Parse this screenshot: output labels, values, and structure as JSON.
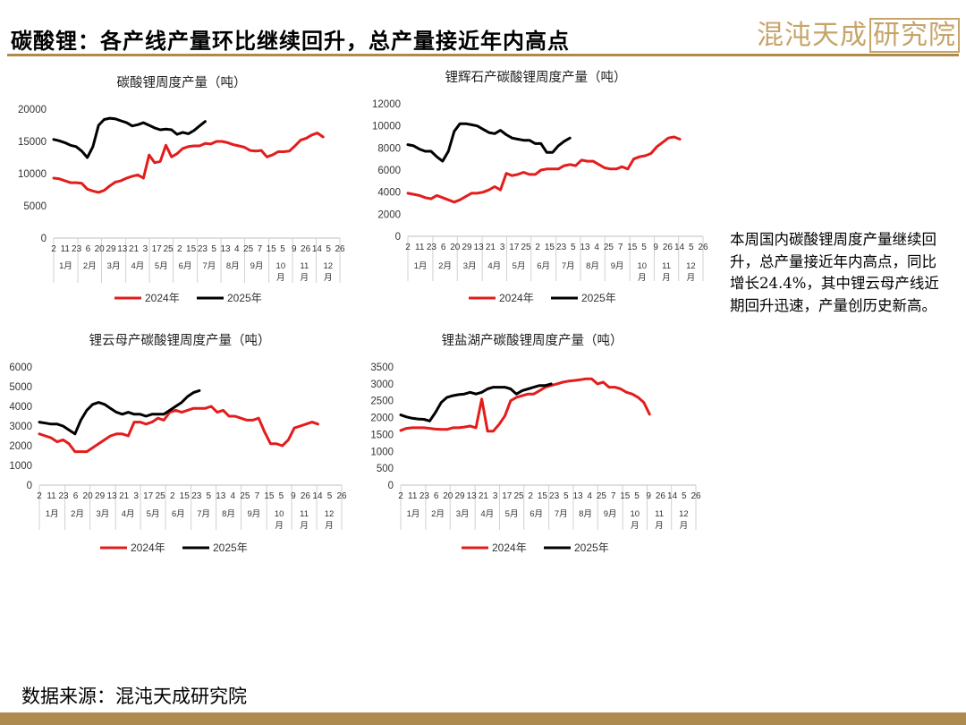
{
  "page": {
    "title": "碳酸锂：各产线产量环比继续回升，总产量接近年内高点",
    "logo": {
      "text": "混沌天成",
      "boxed_text": "研究院"
    },
    "note": "本周国内碳酸锂周度产量继续回升，总产量接近年内高点，同比增长24.4%，其中锂云母产线近期回升迅速，产量创历史新高。",
    "source": "数据来源：混沌天成研究院"
  },
  "colors": {
    "series_2024": "#e31c1c",
    "series_2025": "#000000",
    "rule": "#b08a4a",
    "logo": "#c6a46a"
  },
  "chart_data": [
    {
      "type": "line",
      "title": "碳酸锂周度产量（吨）",
      "ylim": [
        0,
        20000
      ],
      "yticks": [
        0,
        5000,
        10000,
        15000,
        20000
      ],
      "xtick_labels": [
        "2",
        "11",
        "23",
        "6",
        "20",
        "29",
        "13",
        "21",
        "3",
        "17",
        "25",
        "2",
        "15",
        "23",
        "5",
        "13",
        "4",
        "25",
        "7",
        "15",
        "5",
        "9",
        "26",
        "14",
        "5",
        "26"
      ],
      "month_labels": [
        "1月",
        "2月",
        "3月",
        "4月",
        "5月",
        "6月",
        "7月",
        "8月",
        "9月",
        "10月",
        "11月",
        "12月"
      ],
      "x_weeks": 52,
      "series": [
        {
          "name": "2024年",
          "color": "#e31c1c",
          "values": [
            9300,
            9200,
            8900,
            8600,
            8600,
            8500,
            7600,
            7300,
            7100,
            7400,
            8100,
            8700,
            8900,
            9300,
            9600,
            9800,
            9300,
            12900,
            11700,
            11900,
            14400,
            12600,
            13100,
            13900,
            14200,
            14300,
            14300,
            14700,
            14600,
            15000,
            15000,
            14800,
            14500,
            14300,
            14100,
            13600,
            13500,
            13600,
            12600,
            12900,
            13400,
            13400,
            13500,
            14300,
            15200,
            15500,
            16000,
            16300,
            15700
          ]
        },
        {
          "name": "2025年",
          "color": "#000000",
          "values": [
            15300,
            15100,
            14800,
            14400,
            14200,
            13500,
            12500,
            14200,
            17500,
            18400,
            18600,
            18500,
            18200,
            17900,
            17400,
            17600,
            17900,
            17500,
            17100,
            16800,
            16900,
            16800,
            16100,
            16400,
            16200,
            16700,
            17400,
            18100
          ]
        }
      ]
    },
    {
      "type": "line",
      "title": "锂辉石产碳酸锂周度产量（吨）",
      "ylim": [
        0,
        12000
      ],
      "yticks": [
        0,
        2000,
        4000,
        6000,
        8000,
        10000,
        12000
      ],
      "xtick_labels": [
        "2",
        "11",
        "23",
        "6",
        "20",
        "29",
        "13",
        "21",
        "3",
        "17",
        "25",
        "2",
        "15",
        "23",
        "5",
        "13",
        "4",
        "25",
        "7",
        "15",
        "5",
        "9",
        "26",
        "14",
        "5",
        "26"
      ],
      "month_labels": [
        "1月",
        "2月",
        "3月",
        "4月",
        "5月",
        "6月",
        "7月",
        "8月",
        "9月",
        "10月",
        "11月",
        "12月"
      ],
      "x_weeks": 52,
      "series": [
        {
          "name": "2024年",
          "color": "#e31c1c",
          "values": [
            3900,
            3800,
            3700,
            3500,
            3400,
            3700,
            3500,
            3300,
            3100,
            3300,
            3600,
            3900,
            3900,
            4000,
            4200,
            4500,
            4200,
            5700,
            5500,
            5600,
            5800,
            5600,
            5600,
            6000,
            6100,
            6100,
            6100,
            6400,
            6500,
            6400,
            6900,
            6800,
            6800,
            6500,
            6200,
            6100,
            6100,
            6300,
            6100,
            7000,
            7200,
            7300,
            7500,
            8100,
            8500,
            8900,
            9000,
            8800
          ]
        },
        {
          "name": "2025年",
          "color": "#000000",
          "values": [
            8300,
            8200,
            7900,
            7700,
            7700,
            7200,
            6800,
            7700,
            9500,
            10200,
            10200,
            10100,
            10000,
            9700,
            9400,
            9300,
            9600,
            9200,
            8900,
            8800,
            8700,
            8700,
            8400,
            8400,
            7600,
            7600,
            8200,
            8600,
            8900
          ]
        }
      ]
    },
    {
      "type": "line",
      "title": "锂云母产碳酸锂周度产量（吨）",
      "ylim": [
        0,
        6000
      ],
      "yticks": [
        0,
        1000,
        2000,
        3000,
        4000,
        5000,
        6000
      ],
      "xtick_labels": [
        "2",
        "11",
        "23",
        "6",
        "20",
        "29",
        "13",
        "21",
        "3",
        "17",
        "25",
        "2",
        "15",
        "23",
        "5",
        "13",
        "4",
        "25",
        "7",
        "15",
        "5",
        "9",
        "26",
        "14",
        "5",
        "26"
      ],
      "month_labels": [
        "1月",
        "2月",
        "3月",
        "4月",
        "5月",
        "6月",
        "7月",
        "8月",
        "9月",
        "10月",
        "11月",
        "12月"
      ],
      "x_weeks": 52,
      "series": [
        {
          "name": "2024年",
          "color": "#e31c1c",
          "values": [
            2600,
            2500,
            2400,
            2200,
            2300,
            2100,
            1700,
            1700,
            1700,
            1900,
            2100,
            2300,
            2500,
            2600,
            2600,
            2500,
            3200,
            3200,
            3100,
            3200,
            3400,
            3300,
            3700,
            3800,
            3700,
            3800,
            3900,
            3900,
            3900,
            4000,
            3700,
            3800,
            3500,
            3500,
            3400,
            3300,
            3300,
            3400,
            2700,
            2100,
            2100,
            2000,
            2300,
            2900,
            3000,
            3100,
            3200,
            3100
          ]
        },
        {
          "name": "2025年",
          "color": "#000000",
          "values": [
            3200,
            3150,
            3100,
            3100,
            3000,
            2800,
            2600,
            3300,
            3800,
            4100,
            4200,
            4100,
            3900,
            3700,
            3600,
            3700,
            3600,
            3600,
            3500,
            3600,
            3600,
            3600,
            3800,
            4000,
            4200,
            4500,
            4700,
            4800
          ]
        }
      ]
    },
    {
      "type": "line",
      "title": "锂盐湖产碳酸锂周度产量（吨）",
      "ylim": [
        0,
        3500
      ],
      "yticks": [
        0,
        500,
        1000,
        1500,
        2000,
        2500,
        3000,
        3500
      ],
      "xtick_labels": [
        "2",
        "11",
        "23",
        "6",
        "20",
        "29",
        "13",
        "21",
        "3",
        "17",
        "25",
        "2",
        "15",
        "23",
        "5",
        "13",
        "4",
        "25",
        "7",
        "15",
        "5",
        "9",
        "26",
        "14",
        "5",
        "26"
      ],
      "month_labels": [
        "1月",
        "2月",
        "3月",
        "4月",
        "5月",
        "6月",
        "7月",
        "8月",
        "9月",
        "10月",
        "11月",
        "12月"
      ],
      "x_weeks": 52,
      "series": [
        {
          "name": "2024年",
          "color": "#e31c1c",
          "values": [
            1620,
            1680,
            1700,
            1700,
            1700,
            1680,
            1660,
            1650,
            1650,
            1700,
            1700,
            1720,
            1750,
            1700,
            2550,
            1600,
            1600,
            1800,
            2050,
            2500,
            2600,
            2650,
            2700,
            2700,
            2800,
            2900,
            2950,
            3000,
            3050,
            3080,
            3100,
            3120,
            3150,
            3150,
            3000,
            3050,
            2900,
            2900,
            2850,
            2750,
            2700,
            2600,
            2450,
            2100
          ]
        },
        {
          "name": "2025年",
          "color": "#000000",
          "values": [
            2080,
            2020,
            1980,
            1960,
            1950,
            1900,
            2150,
            2450,
            2600,
            2650,
            2680,
            2700,
            2750,
            2700,
            2750,
            2850,
            2900,
            2900,
            2900,
            2850,
            2700,
            2800,
            2850,
            2900,
            2950,
            2950,
            3000
          ]
        }
      ]
    }
  ]
}
